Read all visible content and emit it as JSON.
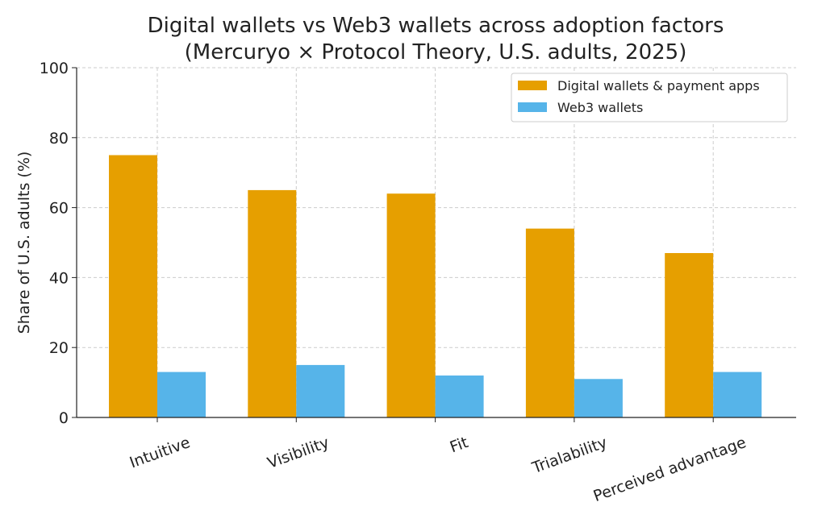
{
  "chart_data": {
    "type": "bar",
    "title": "Digital wallets vs Web3 wallets across adoption factors",
    "subtitle": "(Mercuryo × Protocol Theory, U.S. adults, 2025)",
    "xlabel": "",
    "ylabel": "Share of U.S. adults (%)",
    "ylim": [
      0,
      100
    ],
    "yticks": [
      0,
      20,
      40,
      60,
      80,
      100
    ],
    "categories": [
      "Intuitive",
      "Visibility",
      "Fit",
      "Trialability",
      "Perceived advantage"
    ],
    "series": [
      {
        "name": "Digital wallets & payment apps",
        "color": "#E69F00",
        "values": [
          75,
          65,
          64,
          54,
          47
        ]
      },
      {
        "name": "Web3 wallets",
        "color": "#56B4E9",
        "values": [
          13,
          15,
          12,
          11,
          13
        ]
      }
    ],
    "grid": true,
    "legend": "top-right"
  }
}
